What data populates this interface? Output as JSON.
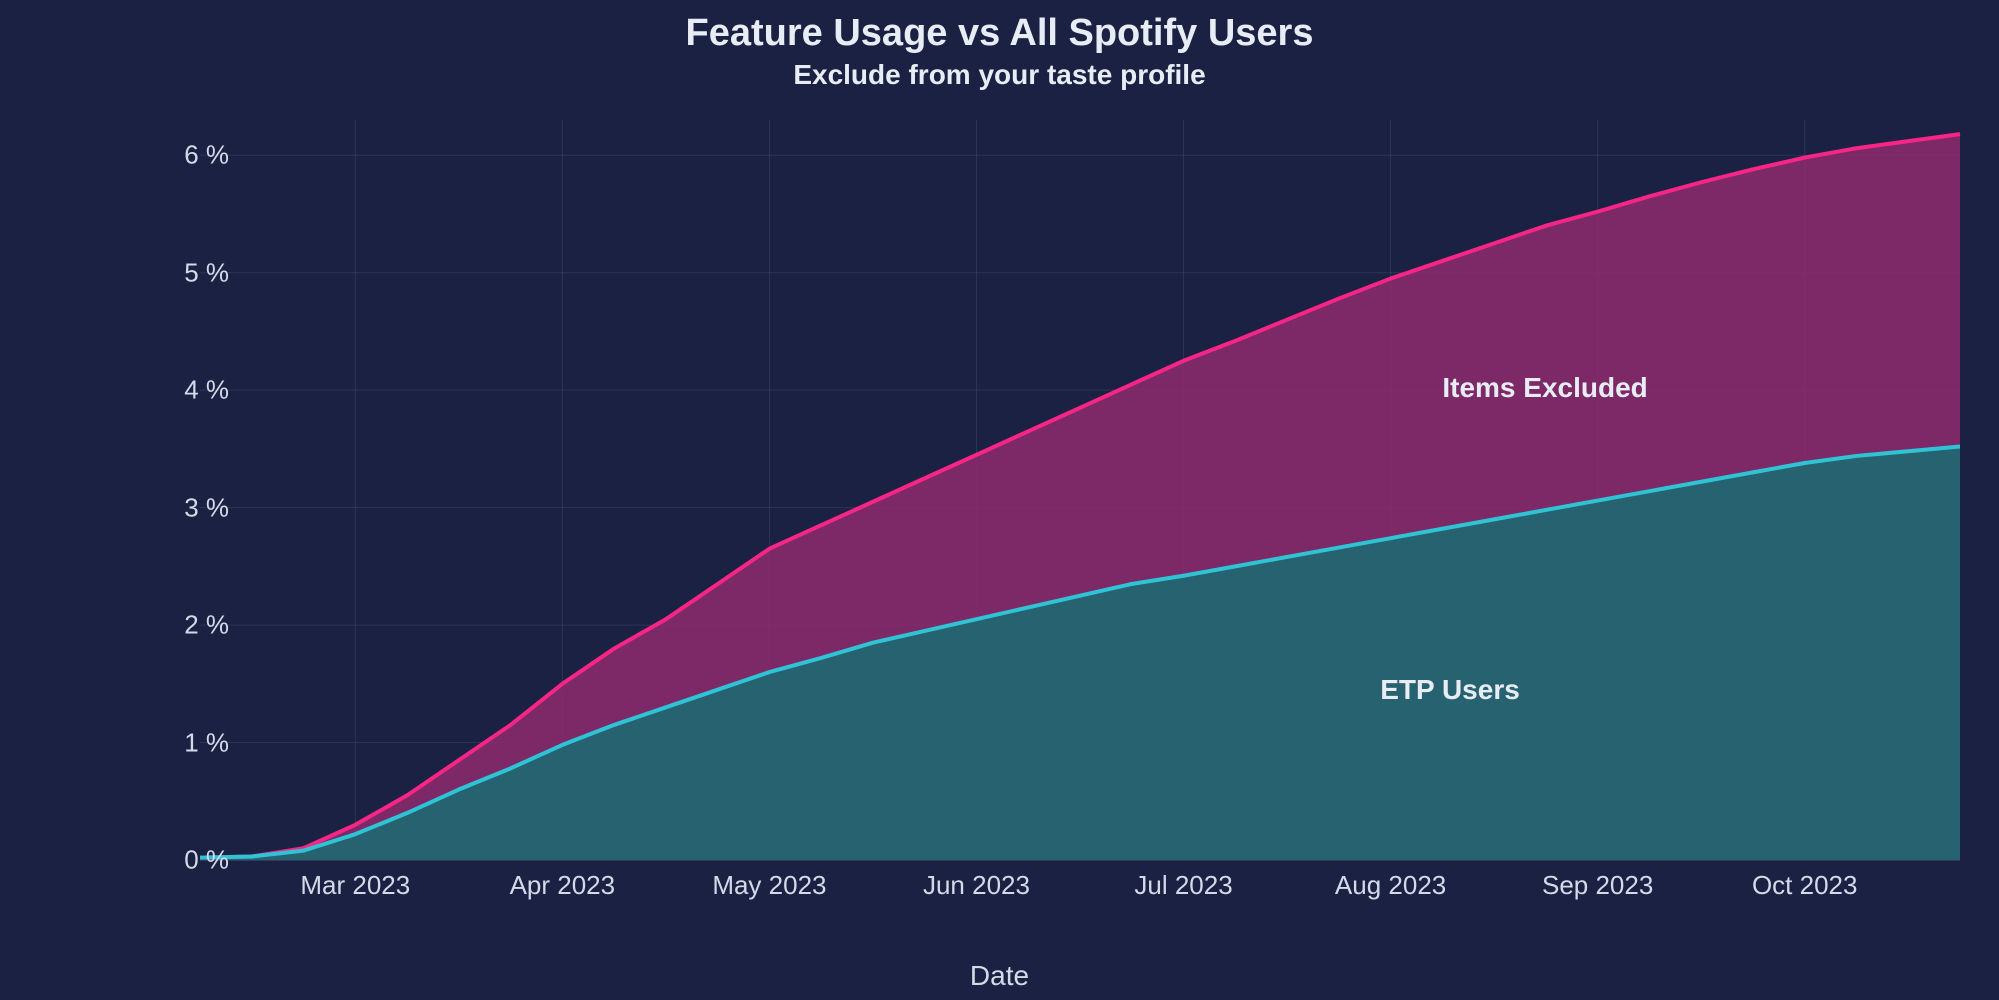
{
  "chart": {
    "type": "area",
    "title": "Feature Usage vs All Spotify Users",
    "subtitle": "Exclude from your taste profile",
    "title_fontsize": 38,
    "subtitle_fontsize": 28,
    "background_color": "#1a2142",
    "grid_color": "#3a4266",
    "grid_opacity": 0.6,
    "text_color": "#d4dae8",
    "label_color": "#e8ecf4",
    "xlabel": "Date",
    "label_fontsize": 28,
    "tick_fontsize": 26,
    "y_axis": {
      "min": 0,
      "max": 6.3,
      "ticks": [
        0,
        1,
        2,
        3,
        4,
        5,
        6
      ],
      "tick_labels": [
        "0 %",
        "1 %",
        "2 %",
        "3 %",
        "4 %",
        "5 %",
        "6 %"
      ],
      "unit": "%"
    },
    "x_axis": {
      "min": 0,
      "max": 8.5,
      "ticks": [
        0.75,
        1.75,
        2.75,
        3.75,
        4.75,
        5.75,
        6.75,
        7.75,
        8.35
      ],
      "tick_labels": [
        "Mar 2023",
        "Apr 2023",
        "May 2023",
        "Jun 2023",
        "Jul 2023",
        "Aug 2023",
        "Sep 2023",
        "Oct 2023"
      ],
      "grid_ticks": [
        0.75,
        1.75,
        2.75,
        3.75,
        4.75,
        5.75,
        6.75,
        7.75
      ]
    },
    "series": [
      {
        "name": "Items Excluded",
        "line_color": "#f72585",
        "fill_color": "#8a2a6b",
        "fill_opacity": 0.9,
        "line_width": 4,
        "label_pos": {
          "x": 6.0,
          "y": 4.02
        },
        "data": [
          [
            0.0,
            0.02
          ],
          [
            0.25,
            0.03
          ],
          [
            0.5,
            0.1
          ],
          [
            0.75,
            0.3
          ],
          [
            1.0,
            0.55
          ],
          [
            1.25,
            0.85
          ],
          [
            1.5,
            1.15
          ],
          [
            1.75,
            1.5
          ],
          [
            2.0,
            1.8
          ],
          [
            2.25,
            2.05
          ],
          [
            2.5,
            2.35
          ],
          [
            2.75,
            2.65
          ],
          [
            3.0,
            2.85
          ],
          [
            3.25,
            3.05
          ],
          [
            3.5,
            3.25
          ],
          [
            3.75,
            3.45
          ],
          [
            4.0,
            3.65
          ],
          [
            4.25,
            3.85
          ],
          [
            4.5,
            4.05
          ],
          [
            4.75,
            4.25
          ],
          [
            5.0,
            4.42
          ],
          [
            5.25,
            4.6
          ],
          [
            5.5,
            4.78
          ],
          [
            5.75,
            4.95
          ],
          [
            6.0,
            5.1
          ],
          [
            6.25,
            5.25
          ],
          [
            6.5,
            5.4
          ],
          [
            6.75,
            5.52
          ],
          [
            7.0,
            5.65
          ],
          [
            7.25,
            5.77
          ],
          [
            7.5,
            5.88
          ],
          [
            7.75,
            5.98
          ],
          [
            8.0,
            6.06
          ],
          [
            8.25,
            6.12
          ],
          [
            8.5,
            6.18
          ]
        ]
      },
      {
        "name": "ETP Users",
        "line_color": "#2ec4d6",
        "fill_color": "#1e6871",
        "fill_opacity": 0.9,
        "line_width": 4,
        "label_pos": {
          "x": 5.7,
          "y": 1.45
        },
        "data": [
          [
            0.0,
            0.02
          ],
          [
            0.25,
            0.03
          ],
          [
            0.5,
            0.08
          ],
          [
            0.75,
            0.22
          ],
          [
            1.0,
            0.4
          ],
          [
            1.25,
            0.6
          ],
          [
            1.5,
            0.78
          ],
          [
            1.75,
            0.98
          ],
          [
            2.0,
            1.15
          ],
          [
            2.25,
            1.3
          ],
          [
            2.5,
            1.45
          ],
          [
            2.75,
            1.6
          ],
          [
            3.0,
            1.72
          ],
          [
            3.25,
            1.85
          ],
          [
            3.5,
            1.95
          ],
          [
            3.75,
            2.05
          ],
          [
            4.0,
            2.15
          ],
          [
            4.25,
            2.25
          ],
          [
            4.5,
            2.35
          ],
          [
            4.75,
            2.42
          ],
          [
            5.0,
            2.5
          ],
          [
            5.25,
            2.58
          ],
          [
            5.5,
            2.66
          ],
          [
            5.75,
            2.74
          ],
          [
            6.0,
            2.82
          ],
          [
            6.25,
            2.9
          ],
          [
            6.5,
            2.98
          ],
          [
            6.75,
            3.06
          ],
          [
            7.0,
            3.14
          ],
          [
            7.25,
            3.22
          ],
          [
            7.5,
            3.3
          ],
          [
            7.75,
            3.38
          ],
          [
            8.0,
            3.44
          ],
          [
            8.25,
            3.48
          ],
          [
            8.5,
            3.52
          ]
        ]
      }
    ]
  }
}
